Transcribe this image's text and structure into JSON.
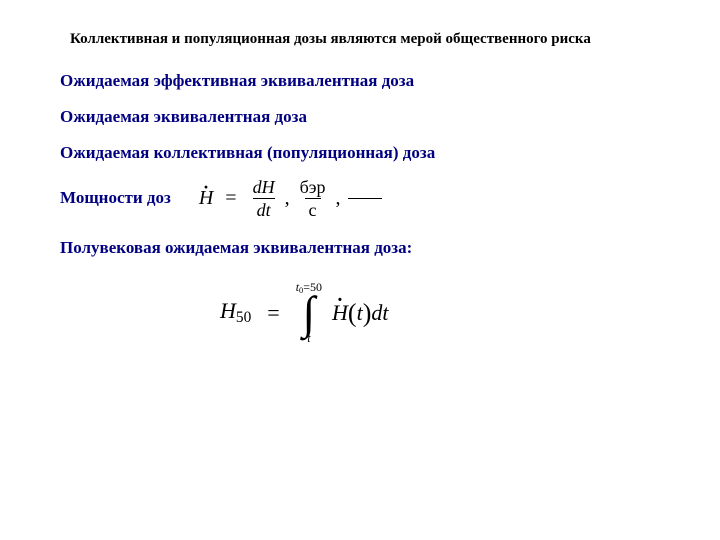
{
  "title": "Коллективная и популяционная дозы являются мерой общественного риска",
  "sections": {
    "expected_effective_equiv": "Ожидаемая эффективная эквивалентная доза",
    "expected_equiv": "Ожидаемая эквивалентная доза",
    "expected_collective": "Ожидаемая коллективная (популяционная) доза",
    "dose_rate_label": "Мощности доз",
    "fifty_year": "Полувековая ожидаемая эквивалентная доза:"
  },
  "formula_rate": {
    "lhs": "H",
    "frac1_num": "dH",
    "frac1_den": "dt",
    "unit_num": "бэр",
    "unit_den": "с"
  },
  "formula_integral": {
    "lhs": "H",
    "lhs_sub": "50",
    "upper_limit_t": "t",
    "upper_limit_sub": "0",
    "upper_limit_val": "=50",
    "lower_limit": "t",
    "integrand_H": "H",
    "arg": "t",
    "dt": "dt"
  },
  "colors": {
    "heading": "#000080",
    "text": "#000000",
    "bg": "#ffffff"
  }
}
